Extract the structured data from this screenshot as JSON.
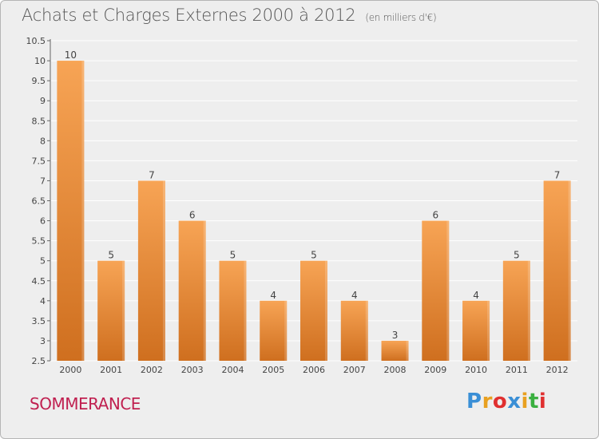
{
  "header": {
    "title": "Achats et Charges Externes 2000 à 2012",
    "subtitle": "(en milliers d'€)"
  },
  "footer": {
    "place": "SOMMERANCE",
    "brand_letters": [
      "P",
      "r",
      "o",
      "x",
      "i",
      "t",
      "i"
    ],
    "brand_colors": [
      "#3a8fd6",
      "#e8a020",
      "#e03030",
      "#3a8fd6",
      "#e8a020",
      "#3ab040",
      "#e03030"
    ]
  },
  "colors": {
    "bar_top": "#f7a455",
    "bar_bottom": "#cf6f1f",
    "grid": "#ffffff",
    "axis_text": "#444444"
  },
  "chart_data": {
    "type": "bar",
    "categories": [
      "2000",
      "2001",
      "2002",
      "2003",
      "2004",
      "2005",
      "2006",
      "2007",
      "2008",
      "2009",
      "2010",
      "2011",
      "2012"
    ],
    "values": [
      10,
      5,
      7,
      6,
      5,
      4,
      5,
      4,
      3,
      6,
      4,
      5,
      7
    ],
    "data_labels": [
      "10",
      "5",
      "7",
      "6",
      "5",
      "4",
      "5",
      "4",
      "3",
      "6",
      "4",
      "5",
      "7"
    ],
    "title": "Achats et Charges Externes 2000 à 2012",
    "ylim": [
      2.5,
      10.5
    ],
    "yticks": [
      "2.5",
      "3",
      "3.5",
      "4",
      "4.5",
      "5",
      "5.5",
      "6",
      "6.5",
      "7",
      "7.5",
      "8",
      "8.5",
      "9",
      "9.5",
      "10",
      "10.5"
    ],
    "grid": true,
    "legend": "none"
  }
}
